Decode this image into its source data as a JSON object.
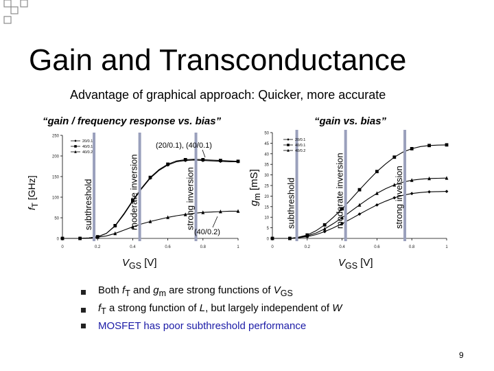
{
  "slide": {
    "title": "Gain and Transconductance",
    "subtitle": "Advantage of graphical approach: Quicker, more accurate",
    "page_number": "9"
  },
  "left_panel": {
    "heading": "“gain / frequency response vs. bias”",
    "ylabel": "f_T [GHz]",
    "xlabel": "V_GS [V]"
  },
  "right_panel": {
    "heading": "“gain vs. bias”",
    "ylabel": "g_m [mS]",
    "xlabel": "V_GS [V]"
  },
  "bullets": [
    {
      "text": "Both f_T and g_m are strong functions of V_GS",
      "color": "#000000"
    },
    {
      "text": "f_T a strong function of L, but largely independent of W",
      "color": "#000000"
    },
    {
      "text": "MOSFET has poor subthreshold performance",
      "color": "#1a1aa6"
    }
  ],
  "colors": {
    "region_line": "#9aa0bc",
    "series_dark": "#000000",
    "bullet_mark": "#222222"
  },
  "chart_data": [
    {
      "type": "line",
      "title": "“gain / frequency response vs. bias”",
      "xlabel": "V_GS [V]",
      "ylabel": "f_T [GHz]",
      "xlim": [
        0,
        1
      ],
      "ylim": [
        0,
        250
      ],
      "xticks": [
        "0",
        "0.2",
        "0.4",
        "0.6",
        "0.8",
        "1"
      ],
      "yticks": [
        "0",
        "50",
        "100",
        "150",
        "200",
        "250"
      ],
      "legend": [
        "20/0.1",
        "40/0.1",
        "40/0.2"
      ],
      "legend_position": "top-left",
      "region_lines_x": [
        0.18,
        0.44,
        0.76
      ],
      "regions": [
        "subthreshold",
        "moderate inversion",
        "strong inversion"
      ],
      "annotations": [
        "(20/0.1), (40/0.1)",
        "(40/0.2)"
      ],
      "series": [
        {
          "name": "20/0.1",
          "marker": "diamond",
          "x": [
            0.0,
            0.05,
            0.1,
            0.15,
            0.2,
            0.25,
            0.3,
            0.35,
            0.4,
            0.45,
            0.5,
            0.55,
            0.6,
            0.65,
            0.7,
            0.75,
            0.8,
            0.85,
            0.9,
            0.95,
            1.0
          ],
          "y": [
            0,
            0,
            0,
            1,
            4,
            12,
            30,
            58,
            90,
            120,
            146,
            165,
            178,
            186,
            189,
            190,
            189,
            188,
            187,
            186,
            186
          ]
        },
        {
          "name": "40/0.1",
          "marker": "square",
          "x": [
            0.0,
            0.05,
            0.1,
            0.15,
            0.2,
            0.25,
            0.3,
            0.35,
            0.4,
            0.45,
            0.5,
            0.55,
            0.6,
            0.65,
            0.7,
            0.75,
            0.8,
            0.85,
            0.9,
            0.95,
            1.0
          ],
          "y": [
            0,
            0,
            0,
            1,
            4,
            12,
            31,
            60,
            92,
            122,
            148,
            167,
            180,
            188,
            191,
            192,
            191,
            190,
            189,
            188,
            187
          ]
        },
        {
          "name": "40/0.2",
          "marker": "triangle",
          "x": [
            0.0,
            0.05,
            0.1,
            0.15,
            0.2,
            0.25,
            0.3,
            0.35,
            0.4,
            0.45,
            0.5,
            0.55,
            0.6,
            0.65,
            0.7,
            0.75,
            0.8,
            0.85,
            0.9,
            0.95,
            1.0
          ],
          "y": [
            0,
            0,
            0,
            1,
            3,
            6,
            12,
            20,
            28,
            35,
            41,
            46,
            51,
            55,
            58,
            61,
            63,
            64,
            65,
            66,
            66
          ]
        }
      ]
    },
    {
      "type": "line",
      "title": "“gain vs. bias”",
      "xlabel": "V_GS [V]",
      "ylabel": "g_m [mS]",
      "xlim": [
        0,
        1
      ],
      "ylim": [
        0,
        50
      ],
      "xticks": [
        "0",
        "0.2",
        "0.4",
        "0.6",
        "0.8",
        "1"
      ],
      "yticks": [
        "0",
        "5",
        "10",
        "15",
        "20",
        "25",
        "30",
        "35",
        "40",
        "45",
        "50"
      ],
      "legend": [
        "20/0.1",
        "40/0.1",
        "40/0.2"
      ],
      "legend_position": "top-left",
      "region_lines_x": [
        0.14,
        0.42,
        0.76
      ],
      "regions": [
        "subthreshold",
        "moderate inversion",
        "strong inversion"
      ],
      "series": [
        {
          "name": "20/0.1",
          "marker": "diamond",
          "x": [
            0.0,
            0.05,
            0.1,
            0.15,
            0.2,
            0.25,
            0.3,
            0.35,
            0.4,
            0.45,
            0.5,
            0.55,
            0.6,
            0.65,
            0.7,
            0.75,
            0.8,
            0.85,
            0.9,
            0.95,
            1.0
          ],
          "y": [
            0,
            0,
            0,
            0.3,
            0.8,
            1.8,
            3.2,
            5.0,
            7.0,
            9.2,
            11.5,
            13.7,
            15.8,
            17.6,
            19.2,
            20.4,
            21.2,
            21.7,
            22.0,
            22.1,
            22.2
          ]
        },
        {
          "name": "40/0.1",
          "marker": "square",
          "x": [
            0.0,
            0.05,
            0.1,
            0.15,
            0.2,
            0.25,
            0.3,
            0.35,
            0.4,
            0.45,
            0.5,
            0.55,
            0.6,
            0.65,
            0.7,
            0.75,
            0.8,
            0.85,
            0.9,
            0.95,
            1.0
          ],
          "y": [
            0,
            0,
            0,
            0.6,
            1.6,
            3.6,
            6.4,
            10.0,
            14.0,
            18.4,
            23.0,
            27.4,
            31.6,
            35.2,
            38.4,
            40.8,
            42.4,
            43.4,
            43.9,
            44.1,
            44.2
          ]
        },
        {
          "name": "40/0.2",
          "marker": "triangle",
          "x": [
            0.0,
            0.05,
            0.1,
            0.15,
            0.2,
            0.25,
            0.3,
            0.35,
            0.4,
            0.45,
            0.5,
            0.55,
            0.6,
            0.65,
            0.7,
            0.75,
            0.8,
            0.85,
            0.9,
            0.95,
            1.0
          ],
          "y": [
            0,
            0,
            0,
            0.5,
            1.2,
            2.5,
            4.5,
            7.0,
            9.8,
            12.8,
            15.8,
            18.7,
            21.3,
            23.5,
            25.3,
            26.6,
            27.5,
            28.0,
            28.3,
            28.4,
            28.5
          ]
        }
      ]
    }
  ]
}
